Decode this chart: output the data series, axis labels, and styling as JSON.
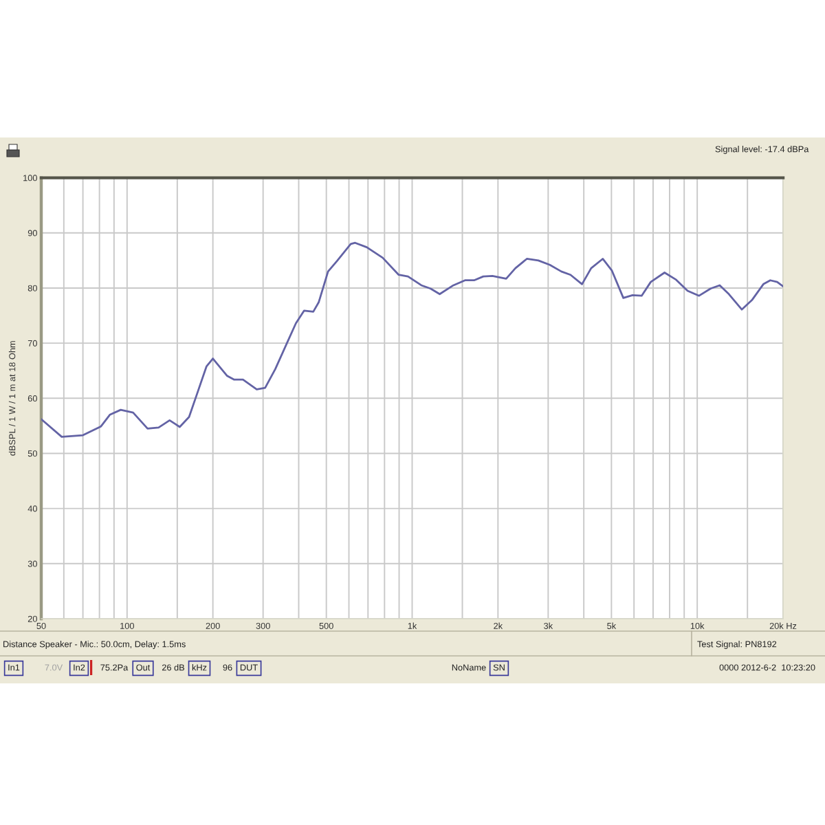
{
  "chart_data": {
    "type": "line",
    "ylabel": "dBSPL / 1 W / 1 m at 18 Ohm",
    "x": [
      50,
      59,
      70,
      81,
      87,
      95,
      105,
      118,
      129,
      141,
      153,
      165,
      176,
      190,
      200,
      224,
      237,
      255,
      285,
      305,
      331,
      363,
      391,
      418,
      450,
      470,
      507,
      545,
      609,
      631,
      693,
      788,
      897,
      967,
      1077,
      1160,
      1249,
      1396,
      1532,
      1649,
      1776,
      1912,
      2137,
      2302,
      2525,
      2771,
      3040,
      3336,
      3593,
      3943,
      4245,
      4662,
      5015,
      5505,
      5930,
      6383,
      6870,
      7680,
      8433,
      9249,
      10150,
      11140,
      11990,
      12910,
      14330,
      15550,
      17060,
      18040,
      19070,
      20000
    ],
    "series": [
      {
        "color": "#6363a5",
        "values": [
          56.2,
          53.0,
          53.3,
          54.9,
          57.0,
          57.9,
          57.4,
          54.5,
          54.7,
          56.0,
          54.8,
          56.6,
          60.8,
          65.8,
          67.2,
          64.1,
          63.4,
          63.4,
          61.6,
          61.9,
          65.3,
          69.9,
          73.6,
          75.9,
          75.7,
          77.4,
          83.0,
          84.9,
          88.0,
          88.2,
          87.4,
          85.5,
          82.4,
          82.1,
          80.5,
          79.9,
          78.9,
          80.5,
          81.4,
          81.4,
          82.1,
          82.2,
          81.7,
          83.6,
          85.3,
          85.0,
          84.2,
          83.0,
          82.4,
          80.7,
          83.6,
          85.3,
          83.2,
          78.2,
          78.7,
          78.6,
          81.1,
          82.8,
          81.5,
          79.5,
          78.6,
          79.9,
          80.5,
          78.9,
          76.1,
          77.8,
          80.7,
          81.4,
          81.1,
          80.3
        ]
      }
    ],
    "log": "x",
    "xlim": [
      50,
      20000
    ],
    "ylim": [
      20,
      100
    ],
    "xticks": [
      50,
      {
        "value": 60,
        "label": null
      },
      {
        "value": 70,
        "label": null
      },
      {
        "value": 80,
        "label": null
      },
      {
        "value": 90,
        "label": null
      },
      100,
      {
        "value": 150,
        "label": null
      },
      200,
      300,
      {
        "value": 400,
        "label": null
      },
      500,
      {
        "value": 600,
        "label": null
      },
      {
        "value": 700,
        "label": null
      },
      {
        "value": 800,
        "label": null
      },
      {
        "value": 900,
        "label": null
      },
      {
        "value": 1000,
        "label": "1k"
      },
      {
        "value": 1500,
        "label": null
      },
      {
        "value": 2000,
        "label": "2k"
      },
      {
        "value": 3000,
        "label": "3k"
      },
      {
        "value": 4000,
        "label": null
      },
      {
        "value": 5000,
        "label": "5k"
      },
      {
        "value": 6000,
        "label": null
      },
      {
        "value": 7000,
        "label": null
      },
      {
        "value": 8000,
        "label": null
      },
      {
        "value": 9000,
        "label": null
      },
      {
        "value": 10000,
        "label": "10k"
      },
      {
        "value": 15000,
        "label": null
      },
      {
        "value": 20000,
        "label": "20k Hz"
      }
    ],
    "yticks": [
      20,
      30,
      40,
      50,
      60,
      70,
      80,
      90,
      100
    ],
    "grid": true,
    "line_style": "solid",
    "annotations": [
      "Signal level: -17.4 dBPa",
      "Distance Speaker - Mic.: 50.0cm, Delay: 1.5ms",
      "Test Signal: PN8192",
      "In1",
      "7.0V",
      "In2",
      "75.2Pa",
      "Out",
      "26 dB",
      "kHz",
      "96",
      "DUT",
      "NoName",
      "SN",
      "0000 2012-6-2  10:23:20"
    ]
  }
}
